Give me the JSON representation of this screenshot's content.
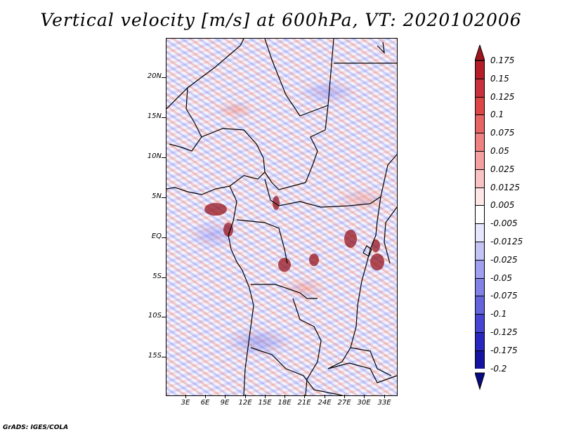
{
  "title": "Vertical velocity [m/s] at 600hPa, VT: 2020102006",
  "y_ticks": [
    "20N",
    "15N",
    "10N",
    "5N",
    "EQ",
    "5S",
    "10S",
    "15S"
  ],
  "x_ticks": [
    "3E",
    "6E",
    "9E",
    "12E",
    "15E",
    "18E",
    "21E",
    "24E",
    "27E",
    "30E",
    "33E"
  ],
  "colorbar": {
    "labels": [
      "0.175",
      "0.15",
      "0.125",
      "0.1",
      "0.075",
      "0.05",
      "0.025",
      "0.0125",
      "0.005",
      "-0.005",
      "-0.0125",
      "-0.025",
      "-0.05",
      "-0.075",
      "-0.1",
      "-0.125",
      "-0.175",
      "-0.2"
    ],
    "colors": [
      "#a0141e",
      "#b41e28",
      "#c8323c",
      "#dc4646",
      "#e66464",
      "#ee8282",
      "#f4a0a0",
      "#f8c3c3",
      "#fce6e6",
      "#ffffff",
      "#e6e6fc",
      "#c3c3f5",
      "#a0a0f0",
      "#8282e6",
      "#6464dc",
      "#4646d2",
      "#2828be",
      "#1414a0",
      "#0a0a80"
    ]
  },
  "credit": "GrADS: IGES/COLA"
}
